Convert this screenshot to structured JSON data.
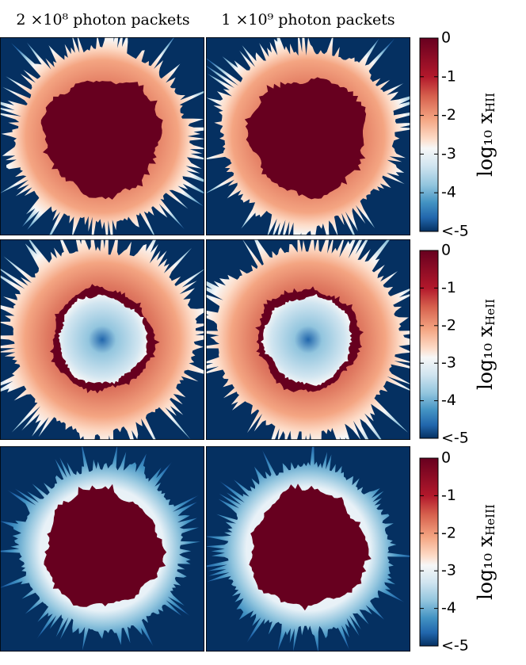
{
  "column_titles": [
    "2 ×10⁸  photon packets",
    "1 ×10⁹  photon packets"
  ],
  "chart_data": [
    {
      "type": "colorbar",
      "ylabel_base": "log₁₀ x",
      "ylabel_sub": "HII",
      "ylim": [
        -5,
        0
      ],
      "yticks": [
        {
          "value": -5,
          "label": "<-5"
        },
        -4,
        -3,
        -2,
        -1,
        0
      ]
    },
    {
      "type": "colorbar",
      "ylabel_base": "log₁₀ x",
      "ylabel_sub": "HeII",
      "ylim": [
        -5,
        0
      ],
      "yticks": [
        {
          "value": -5,
          "label": "<-5"
        },
        -4,
        -3,
        -2,
        -1,
        0
      ]
    },
    {
      "type": "colorbar",
      "ylabel_base": "log₁₀ x",
      "ylabel_sub": "HeIII",
      "ylim": [
        -5,
        0
      ],
      "yticks": [
        {
          "value": -5,
          "label": "<-5"
        },
        -4,
        -3,
        -2,
        -1,
        0
      ]
    }
  ]
}
